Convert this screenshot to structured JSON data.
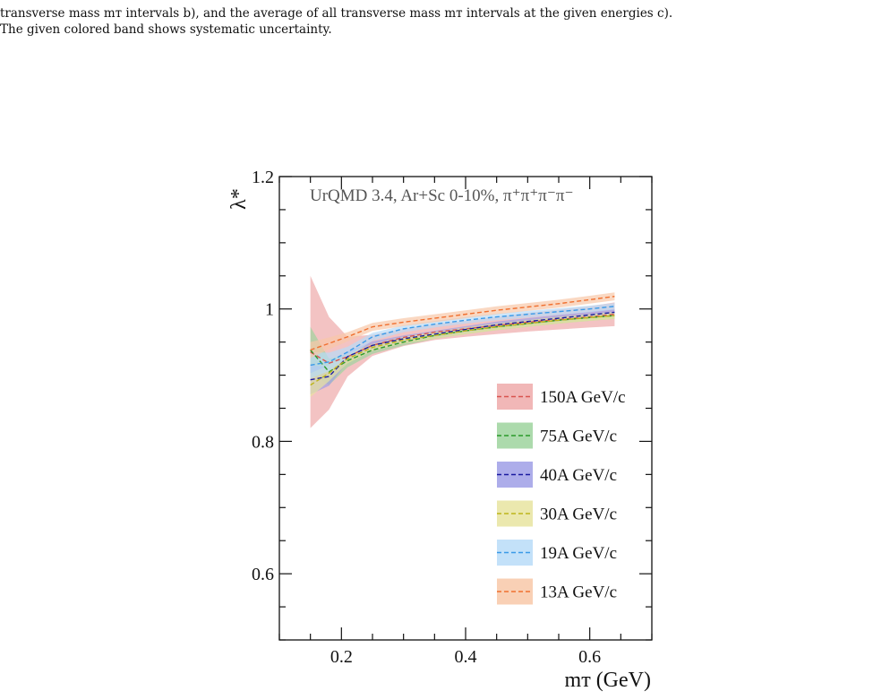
{
  "caption": {
    "line1": "transverse mass mᴛ intervals b), and the average of all transverse mass mᴛ intervals at the given energies c).",
    "line2": "The given colored band shows systematic uncertainty."
  },
  "chart_data": {
    "type": "line",
    "title": "",
    "annotation": "UrQMD 3.4, Ar+Sc 0-10%, π⁺π⁺π⁻π⁻",
    "xlabel": "mᴛ (GeV)",
    "ylabel": "λ*",
    "xlim": [
      0.1,
      0.7
    ],
    "ylim": [
      0.5,
      1.2
    ],
    "xticks": [
      "0.2",
      "0.4",
      "0.6"
    ],
    "yticks": [
      "0.6",
      "0.8",
      "1",
      "1.2"
    ],
    "grid": false,
    "legend_position": "lower-right",
    "x": [
      0.15,
      0.18,
      0.21,
      0.25,
      0.3,
      0.35,
      0.4,
      0.45,
      0.5,
      0.55,
      0.6,
      0.64
    ],
    "series": [
      {
        "name": "150A GeV/c",
        "color": "#d9534f",
        "band": "#eeaaaa",
        "values": [
          0.935,
          0.918,
          0.928,
          0.945,
          0.957,
          0.965,
          0.97,
          0.975,
          0.98,
          0.984,
          0.988,
          0.992
        ],
        "err": [
          0.115,
          0.07,
          0.03,
          0.016,
          0.013,
          0.012,
          0.012,
          0.013,
          0.014,
          0.015,
          0.016,
          0.018
        ]
      },
      {
        "name": "75A GeV/c",
        "color": "#2a9a2a",
        "band": "#9ed49e",
        "values": [
          0.938,
          0.905,
          0.922,
          0.938,
          0.95,
          0.96,
          0.967,
          0.973,
          0.978,
          0.983,
          0.987,
          0.99
        ],
        "err": [
          0.035,
          0.02,
          0.01,
          0.006,
          0.005,
          0.005,
          0.005,
          0.005,
          0.005,
          0.005,
          0.005,
          0.005
        ]
      },
      {
        "name": "40A GeV/c",
        "color": "#1a1aa0",
        "band": "#9f9fe6",
        "values": [
          0.893,
          0.898,
          0.928,
          0.945,
          0.955,
          0.962,
          0.969,
          0.976,
          0.981,
          0.986,
          0.991,
          0.995
        ],
        "err": [
          0.022,
          0.014,
          0.008,
          0.006,
          0.005,
          0.005,
          0.005,
          0.005,
          0.005,
          0.005,
          0.005,
          0.005
        ]
      },
      {
        "name": "30A GeV/c",
        "color": "#bdb51a",
        "band": "#e8e4a0",
        "values": [
          0.885,
          0.903,
          0.925,
          0.942,
          0.953,
          0.96,
          0.967,
          0.973,
          0.978,
          0.983,
          0.987,
          0.99
        ],
        "err": [
          0.018,
          0.012,
          0.007,
          0.005,
          0.005,
          0.005,
          0.005,
          0.005,
          0.005,
          0.005,
          0.005,
          0.005
        ]
      },
      {
        "name": "19A GeV/c",
        "color": "#3a9ae8",
        "band": "#b8dcf8",
        "values": [
          0.915,
          0.92,
          0.935,
          0.958,
          0.97,
          0.977,
          0.983,
          0.988,
          0.992,
          0.996,
          1.0,
          1.004
        ],
        "err": [
          0.02,
          0.014,
          0.008,
          0.006,
          0.005,
          0.005,
          0.005,
          0.005,
          0.005,
          0.005,
          0.005,
          0.005
        ]
      },
      {
        "name": "13A GeV/c",
        "color": "#f07030",
        "band": "#f8c8a8",
        "values": [
          0.938,
          0.948,
          0.958,
          0.973,
          0.98,
          0.986,
          0.992,
          0.998,
          1.003,
          1.008,
          1.014,
          1.019
        ],
        "err": [
          0.012,
          0.009,
          0.007,
          0.006,
          0.006,
          0.006,
          0.006,
          0.006,
          0.006,
          0.006,
          0.006,
          0.006
        ]
      }
    ]
  }
}
